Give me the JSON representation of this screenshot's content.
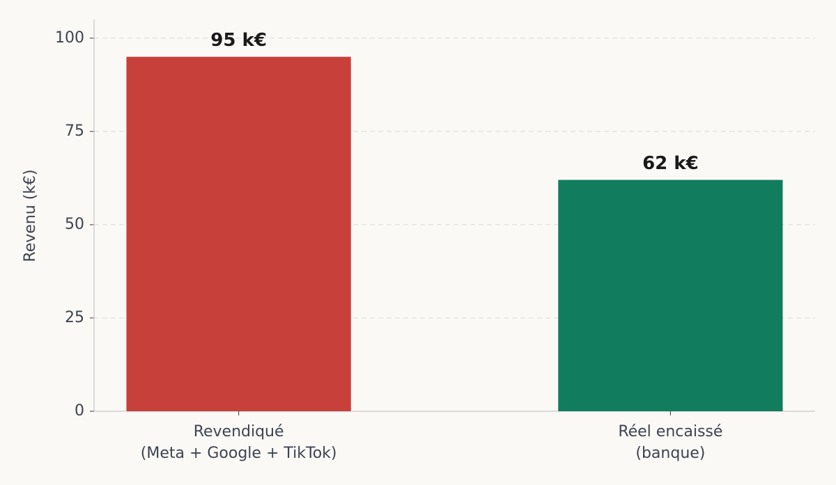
{
  "chart_data": {
    "type": "bar",
    "categories": [
      [
        "Revendiqué",
        "(Meta + Google + TikTok)"
      ],
      [
        "Réel encaissé",
        "(banque)"
      ]
    ],
    "values": [
      95,
      62
    ],
    "value_labels": [
      "95 k€",
      "62 k€"
    ],
    "colors": [
      "#c8403a",
      "#117c5e"
    ],
    "y_label": "Revenu (k€)",
    "ylim": [
      0,
      105
    ],
    "yticks": [
      0,
      25,
      50,
      75,
      100
    ],
    "grid": true
  }
}
